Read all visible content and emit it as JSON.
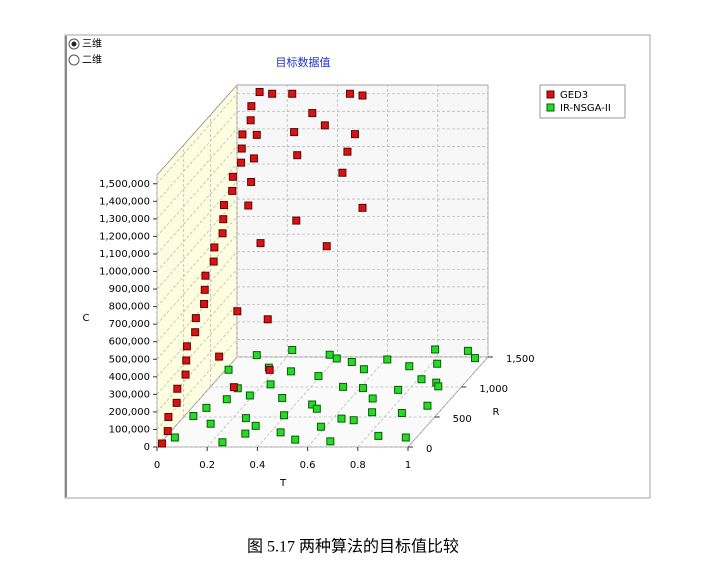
{
  "chart_data": {
    "type": "scatter3d",
    "title": "目标数据值",
    "view_options": [
      "三维",
      "二维"
    ],
    "xlabel": "T",
    "ylabel": "R",
    "zlabel": "C",
    "xlim": [
      0,
      1
    ],
    "ylim": [
      0,
      1500
    ],
    "zlim": [
      0,
      1550000
    ],
    "xticks": [
      0,
      0.2,
      0.4,
      0.6,
      0.8,
      1
    ],
    "yticks": [
      0,
      500,
      {
        "value": 1000,
        "label": "1,000"
      },
      {
        "value": 1500,
        "label": "1,500"
      }
    ],
    "zticks": [
      0,
      {
        "value": 100000,
        "label": "100,000"
      },
      {
        "value": 200000,
        "label": "200,000"
      },
      {
        "value": 300000,
        "label": "300,000"
      },
      {
        "value": 400000,
        "label": "400,000"
      },
      {
        "value": 500000,
        "label": "500,000"
      },
      {
        "value": 600000,
        "label": "600,000"
      },
      {
        "value": 700000,
        "label": "700,000"
      },
      {
        "value": 800000,
        "label": "800,000"
      },
      {
        "value": 900000,
        "label": "900,000"
      },
      {
        "value": 1000000,
        "label": "1,000,000"
      },
      {
        "value": 1100000,
        "label": "1,100,000"
      },
      {
        "value": 1200000,
        "label": "1,200,000"
      },
      {
        "value": 1300000,
        "label": "1,300,000"
      },
      {
        "value": 1400000,
        "label": "1,400,000"
      },
      {
        "value": 1500000,
        "label": "1,500,000"
      }
    ],
    "grid": true,
    "legend": "upper right",
    "series": [
      {
        "name": "IR-NSGA-II",
        "color": "#22dd22",
        "x": [
          0.05,
          0.15,
          0.25,
          0.35,
          0.45,
          0.55,
          0.65,
          0.75,
          0.85,
          0.95,
          0.1,
          0.2,
          0.3,
          0.4,
          0.5,
          0.6,
          0.7,
          0.8,
          0.9,
          0.98,
          0.08,
          0.18,
          0.28,
          0.38,
          0.48,
          0.58,
          0.68,
          0.78,
          0.88,
          0.97,
          0.12,
          0.22,
          0.32,
          0.42,
          0.52,
          0.62,
          0.72,
          0.82,
          0.92,
          0.03,
          0.14,
          0.24,
          0.34,
          0.44,
          0.54,
          0.64,
          0.74,
          0.84,
          0.94,
          0.06
        ],
        "y": [
          100,
          300,
          50,
          700,
          200,
          900,
          400,
          1200,
          150,
          600,
          1400,
          800,
          1100,
          500,
          1300,
          250,
          750,
          1450,
          1000,
          1350,
          550,
          1250,
          350,
          1450,
          650,
          1150,
          50,
          850,
          450,
          100,
          950,
          1500,
          150,
          1050,
          550,
          1400,
          300,
          1100,
          1500,
          1200,
          650,
          1000,
          250,
          1300,
          50,
          850,
          550,
          1300,
          850,
          400
        ],
        "z": [
          20000,
          30000,
          10000,
          40000,
          15000,
          35000,
          25000,
          50000,
          12000,
          30000,
          45000,
          20000,
          55000,
          10000,
          40000,
          30000,
          20000,
          60000,
          25000,
          45000,
          35000,
          25000,
          45000,
          30000,
          20000,
          50000,
          15000,
          35000,
          40000,
          20000,
          10000,
          40000,
          25000,
          45000,
          30000,
          20000,
          50000,
          10000,
          35000,
          30000,
          50000,
          15000,
          35000,
          60000,
          25000,
          45000,
          10000,
          30000,
          55000,
          40000
        ]
      },
      {
        "name": "GED3",
        "color": "#dd1111",
        "x": [
          0.02,
          0.03,
          0.02,
          0.04,
          0.03,
          0.05,
          0.04,
          0.03,
          0.05,
          0.04,
          0.06,
          0.05,
          0.04,
          0.06,
          0.05,
          0.07,
          0.06,
          0.05,
          0.07,
          0.06,
          0.08,
          0.07,
          0.06,
          0.08,
          0.07,
          0.09,
          0.1,
          0.11,
          0.12,
          0.13,
          0.14,
          0.22,
          0.45,
          0.5,
          0.3,
          0.27,
          0.35,
          0.44,
          0.24,
          0.42,
          0.47,
          0.3,
          0.5,
          0.4,
          0.2,
          0.15,
          0.25,
          0.12,
          0.3,
          0.2
        ],
        "y": [
          0,
          60,
          120,
          180,
          240,
          300,
          360,
          420,
          480,
          540,
          600,
          660,
          720,
          780,
          840,
          900,
          960,
          1020,
          1080,
          1140,
          1200,
          1260,
          1320,
          1380,
          1440,
          1500,
          1400,
          1300,
          1200,
          1100,
          1500,
          1500,
          1500,
          1500,
          1500,
          1300,
          1500,
          1500,
          1500,
          1500,
          1500,
          1200,
          1500,
          1300,
          1000,
          800,
          900,
          600,
          700,
          500
        ],
        "z": [
          20000,
          70000,
          130000,
          190000,
          250000,
          310000,
          370000,
          430000,
          490000,
          550000,
          610000,
          670000,
          730000,
          790000,
          850000,
          910000,
          970000,
          1030000,
          1090000,
          1150000,
          1210000,
          1270000,
          1330000,
          1390000,
          1450000,
          1510000,
          1300000,
          1200000,
          1100000,
          1000000,
          1500000,
          1500000,
          1500000,
          1490000,
          1390000,
          1350000,
          1320000,
          1170000,
          1150000,
          1050000,
          1270000,
          880000,
          850000,
          700000,
          820000,
          500000,
          420000,
          310000,
          200000,
          170000
        ]
      }
    ]
  },
  "caption": "图 5.17  两种算法的目标值比较"
}
